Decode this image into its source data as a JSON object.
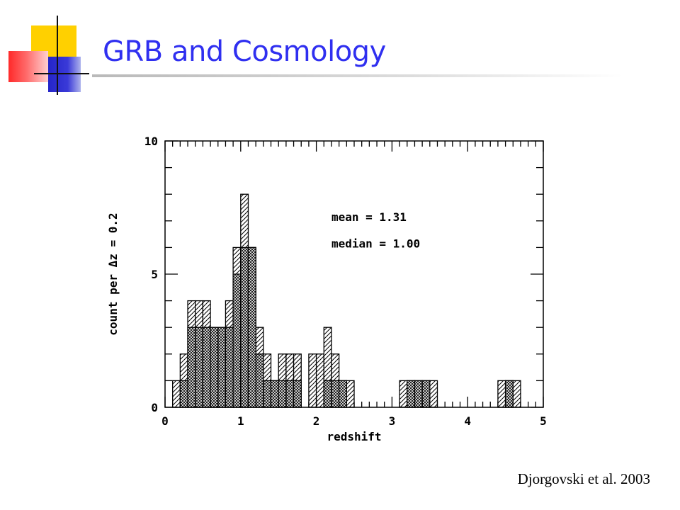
{
  "slide": {
    "title": "GRB and Cosmology",
    "credit": "Djorgovski et al. 2003"
  },
  "colors": {
    "title": "#2f2ff0",
    "deco_yellow": "#ffd000",
    "deco_red": "#ff2a2a",
    "deco_blue": "#2424c8",
    "ink": "#000000"
  },
  "chart_data": {
    "type": "bar",
    "style": "stacked step histogram, hatched",
    "xlabel": "redshift",
    "ylabel": "count per Δz = 0.2",
    "xlim": [
      0,
      5
    ],
    "ylim": [
      0,
      10
    ],
    "xticks": [
      "0",
      "1",
      "2",
      "3",
      "4",
      "5"
    ],
    "yticks": [
      "0",
      "5",
      "10"
    ],
    "bin_width": 0.1,
    "annotations": [
      "mean = 1.31",
      "median = 1.00"
    ],
    "series": [
      {
        "pattern": "diagonal-hatch",
        "bins": [
          {
            "x": 0.1,
            "value": 1
          },
          {
            "x": 0.2,
            "value": 2
          },
          {
            "x": 0.3,
            "value": 4
          },
          {
            "x": 0.4,
            "value": 4
          },
          {
            "x": 0.5,
            "value": 4
          },
          {
            "x": 0.6,
            "value": 3
          },
          {
            "x": 0.7,
            "value": 3
          },
          {
            "x": 0.8,
            "value": 4
          },
          {
            "x": 0.9,
            "value": 6
          },
          {
            "x": 1.0,
            "value": 8
          },
          {
            "x": 1.1,
            "value": 6
          },
          {
            "x": 1.2,
            "value": 3
          },
          {
            "x": 1.3,
            "value": 2
          },
          {
            "x": 1.4,
            "value": 1
          },
          {
            "x": 1.5,
            "value": 2
          },
          {
            "x": 1.6,
            "value": 2
          },
          {
            "x": 1.7,
            "value": 2
          },
          {
            "x": 1.9,
            "value": 2
          },
          {
            "x": 2.0,
            "value": 2
          },
          {
            "x": 2.1,
            "value": 3
          },
          {
            "x": 2.2,
            "value": 2
          },
          {
            "x": 2.3,
            "value": 1
          },
          {
            "x": 2.4,
            "value": 1
          },
          {
            "x": 3.1,
            "value": 1
          },
          {
            "x": 3.2,
            "value": 1
          },
          {
            "x": 3.3,
            "value": 1
          },
          {
            "x": 3.4,
            "value": 1
          },
          {
            "x": 3.5,
            "value": 1
          },
          {
            "x": 4.4,
            "value": 1
          },
          {
            "x": 4.5,
            "value": 1
          },
          {
            "x": 4.6,
            "value": 1
          }
        ]
      },
      {
        "pattern": "cross-hatch",
        "bins": [
          {
            "x": 0.2,
            "value": 1
          },
          {
            "x": 0.3,
            "value": 3
          },
          {
            "x": 0.4,
            "value": 3
          },
          {
            "x": 0.5,
            "value": 3
          },
          {
            "x": 0.6,
            "value": 3
          },
          {
            "x": 0.7,
            "value": 3
          },
          {
            "x": 0.8,
            "value": 3
          },
          {
            "x": 0.9,
            "value": 5
          },
          {
            "x": 1.0,
            "value": 6
          },
          {
            "x": 1.1,
            "value": 6
          },
          {
            "x": 1.2,
            "value": 2
          },
          {
            "x": 1.3,
            "value": 1
          },
          {
            "x": 1.4,
            "value": 1
          },
          {
            "x": 1.5,
            "value": 1
          },
          {
            "x": 1.6,
            "value": 1
          },
          {
            "x": 1.7,
            "value": 1
          },
          {
            "x": 2.1,
            "value": 1
          },
          {
            "x": 2.2,
            "value": 1
          },
          {
            "x": 2.3,
            "value": 1
          },
          {
            "x": 3.2,
            "value": 1
          },
          {
            "x": 3.3,
            "value": 1
          },
          {
            "x": 3.4,
            "value": 1
          },
          {
            "x": 4.5,
            "value": 1
          }
        ]
      }
    ]
  }
}
